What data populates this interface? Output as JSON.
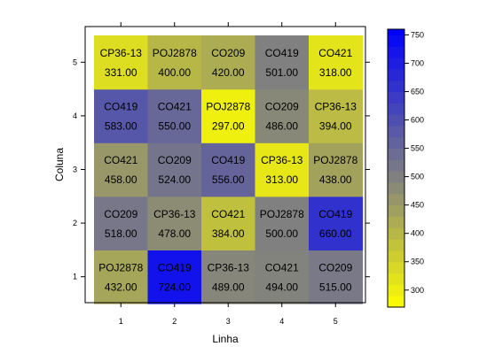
{
  "chart_data": {
    "type": "heatmap",
    "xlabel": "Linha",
    "ylabel": "Coluna",
    "x_ticks": [
      "1",
      "2",
      "3",
      "4",
      "5"
    ],
    "y_ticks": [
      "1",
      "2",
      "3",
      "4",
      "5"
    ],
    "colorbar": {
      "range": [
        270,
        760
      ],
      "ticks": [
        300,
        350,
        400,
        450,
        500,
        550,
        600,
        650,
        700,
        750
      ],
      "tick_labels": [
        "300",
        "350",
        "400",
        "450",
        "500",
        "550",
        "600",
        "650",
        "700",
        "750"
      ],
      "low_color": "#ffff00",
      "mid_color": "#808080",
      "high_color": "#0000ff",
      "mid_value": 500
    },
    "cells": [
      {
        "linha": 1,
        "coluna": 1,
        "label": "POJ2878",
        "value": 432.0,
        "value_text": "432.00"
      },
      {
        "linha": 2,
        "coluna": 1,
        "label": "CO419",
        "value": 724.0,
        "value_text": "724.00"
      },
      {
        "linha": 3,
        "coluna": 1,
        "label": "CP36-13",
        "value": 489.0,
        "value_text": "489.00"
      },
      {
        "linha": 4,
        "coluna": 1,
        "label": "CO421",
        "value": 494.0,
        "value_text": "494.00"
      },
      {
        "linha": 5,
        "coluna": 1,
        "label": "CO209",
        "value": 515.0,
        "value_text": "515.00"
      },
      {
        "linha": 1,
        "coluna": 2,
        "label": "CO209",
        "value": 518.0,
        "value_text": "518.00"
      },
      {
        "linha": 2,
        "coluna": 2,
        "label": "CP36-13",
        "value": 478.0,
        "value_text": "478.00"
      },
      {
        "linha": 3,
        "coluna": 2,
        "label": "CO421",
        "value": 384.0,
        "value_text": "384.00"
      },
      {
        "linha": 4,
        "coluna": 2,
        "label": "POJ2878",
        "value": 500.0,
        "value_text": "500.00"
      },
      {
        "linha": 5,
        "coluna": 2,
        "label": "CO419",
        "value": 660.0,
        "value_text": "660.00"
      },
      {
        "linha": 1,
        "coluna": 3,
        "label": "CO421",
        "value": 458.0,
        "value_text": "458.00"
      },
      {
        "linha": 2,
        "coluna": 3,
        "label": "CO209",
        "value": 524.0,
        "value_text": "524.00"
      },
      {
        "linha": 3,
        "coluna": 3,
        "label": "CO419",
        "value": 556.0,
        "value_text": "556.00"
      },
      {
        "linha": 4,
        "coluna": 3,
        "label": "CP36-13",
        "value": 313.0,
        "value_text": "313.00"
      },
      {
        "linha": 5,
        "coluna": 3,
        "label": "POJ2878",
        "value": 438.0,
        "value_text": "438.00"
      },
      {
        "linha": 1,
        "coluna": 4,
        "label": "CO419",
        "value": 583.0,
        "value_text": "583.00"
      },
      {
        "linha": 2,
        "coluna": 4,
        "label": "CO421",
        "value": 550.0,
        "value_text": "550.00"
      },
      {
        "linha": 3,
        "coluna": 4,
        "label": "POJ2878",
        "value": 297.0,
        "value_text": "297.00"
      },
      {
        "linha": 4,
        "coluna": 4,
        "label": "CO209",
        "value": 486.0,
        "value_text": "486.00"
      },
      {
        "linha": 5,
        "coluna": 4,
        "label": "CP36-13",
        "value": 394.0,
        "value_text": "394.00"
      },
      {
        "linha": 1,
        "coluna": 5,
        "label": "CP36-13",
        "value": 331.0,
        "value_text": "331.00"
      },
      {
        "linha": 2,
        "coluna": 5,
        "label": "POJ2878",
        "value": 400.0,
        "value_text": "400.00"
      },
      {
        "linha": 3,
        "coluna": 5,
        "label": "CO209",
        "value": 420.0,
        "value_text": "420.00"
      },
      {
        "linha": 4,
        "coluna": 5,
        "label": "CO419",
        "value": 501.0,
        "value_text": "501.00"
      },
      {
        "linha": 5,
        "coluna": 5,
        "label": "CO421",
        "value": 318.0,
        "value_text": "318.00"
      }
    ]
  }
}
